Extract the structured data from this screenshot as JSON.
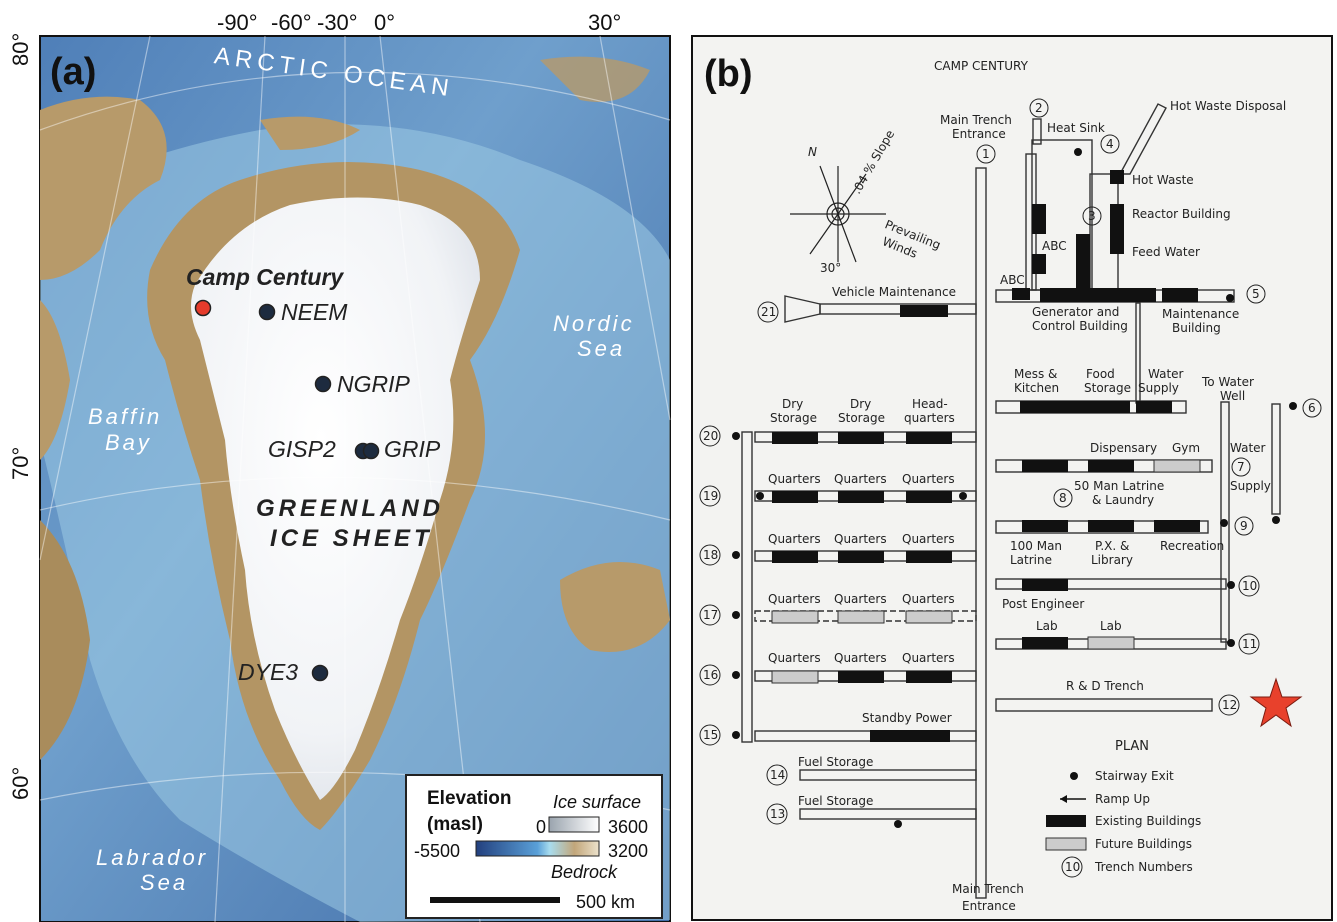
{
  "panel_a": {
    "label": "(a)",
    "lon_labels": [
      "-90°",
      "-60°",
      "-30°",
      "0°",
      "30°"
    ],
    "lat_labels": [
      "80°",
      "70°",
      "60°"
    ],
    "water_labels": {
      "arctic": "ARCTIC OCEAN",
      "nordic_1": "Nordic",
      "nordic_2": "Sea",
      "baffin_1": "Baffin",
      "baffin_2": "Bay",
      "labrador_1": "Labrador",
      "labrador_2": "Sea"
    },
    "ice_sheet_1": "GREENLAND",
    "ice_sheet_2": "ICE SHEET",
    "sites": [
      {
        "name": "Camp Century",
        "color": "#e53b2c"
      },
      {
        "name": "NEEM",
        "color": "#1d2b3f"
      },
      {
        "name": "NGRIP",
        "color": "#1d2b3f"
      },
      {
        "name": "GISP2",
        "color": "#1d2b3f"
      },
      {
        "name": "GRIP",
        "color": "#1d2b3f"
      },
      {
        "name": "DYE3",
        "color": "#1d2b3f"
      }
    ],
    "legend": {
      "title_1": "Elevation",
      "title_2": "(masl)",
      "ice_label": "Ice surface",
      "ice_min": "0",
      "ice_max": "3600",
      "bed_min": "-5500",
      "bed_max": "3200",
      "bed_label": "Bedrock",
      "scale": "500 km"
    }
  },
  "panel_b": {
    "label": "(b)",
    "title": "CAMP CENTURY",
    "labels": {
      "main_trench_entrance_top_1": "Main Trench",
      "main_trench_entrance_top_2": "Entrance",
      "heat_sink": "Heat Sink",
      "hot_waste_disposal": "Hot Waste Disposal",
      "hot_waste": "Hot Waste",
      "reactor_building": "Reactor Building",
      "feed_water": "Feed Water",
      "abc_1": "ABC",
      "abc_2": "ABC",
      "slope": ".04 % Slope",
      "prevailing": "Prevailing",
      "winds": "Winds",
      "north": "N",
      "angle": "30°",
      "vehicle_maintenance": "Vehicle Maintenance",
      "generator_1": "Generator and",
      "generator_2": "Control Building",
      "maintenance_1": "Maintenance",
      "maintenance_2": "Building",
      "mess_1": "Mess &",
      "mess_2": "Kitchen",
      "food_1": "Food",
      "food_2": "Storage",
      "water_1": "Water",
      "water_2": "Supply",
      "to_water_1": "To Water",
      "to_water_2": "Well",
      "dry_1a": "Dry",
      "dry_1b": "Storage",
      "dry_2a": "Dry",
      "dry_2b": "Storage",
      "hq_1": "Head-",
      "hq_2": "quarters",
      "quarters": "Quarters",
      "dispensary": "Dispensary",
      "gym": "Gym",
      "water_supply_1": "Water",
      "water_supply_2": "Supply",
      "latrine50_1": "50 Man Latrine",
      "latrine50_2": "& Laundry",
      "latrine100_1": "100 Man",
      "latrine100_2": "Latrine",
      "px_1": "P.X. &",
      "px_2": "Library",
      "recreation": "Recreation",
      "post_engineer": "Post Engineer",
      "lab_1": "Lab",
      "lab_2": "Lab",
      "rd_trench": "R & D Trench",
      "standby_power": "Standby Power",
      "fuel_1": "Fuel Storage",
      "fuel_2": "Fuel Storage",
      "main_trench_entrance_bot_1": "Main Trench",
      "main_trench_entrance_bot_2": "Entrance"
    },
    "trench_numbers": [
      "1",
      "2",
      "3",
      "4",
      "5",
      "6",
      "7",
      "8",
      "9",
      "10",
      "11",
      "12",
      "13",
      "14",
      "15",
      "16",
      "17",
      "18",
      "19",
      "20",
      "21"
    ],
    "legend": {
      "title": "PLAN",
      "stairway": "Stairway Exit",
      "ramp": "Ramp Up",
      "existing": "Existing Buildings",
      "future": "Future Buildings",
      "trench": "Trench Numbers",
      "trench_sample": "10"
    },
    "marker_color": "#e8412c"
  }
}
